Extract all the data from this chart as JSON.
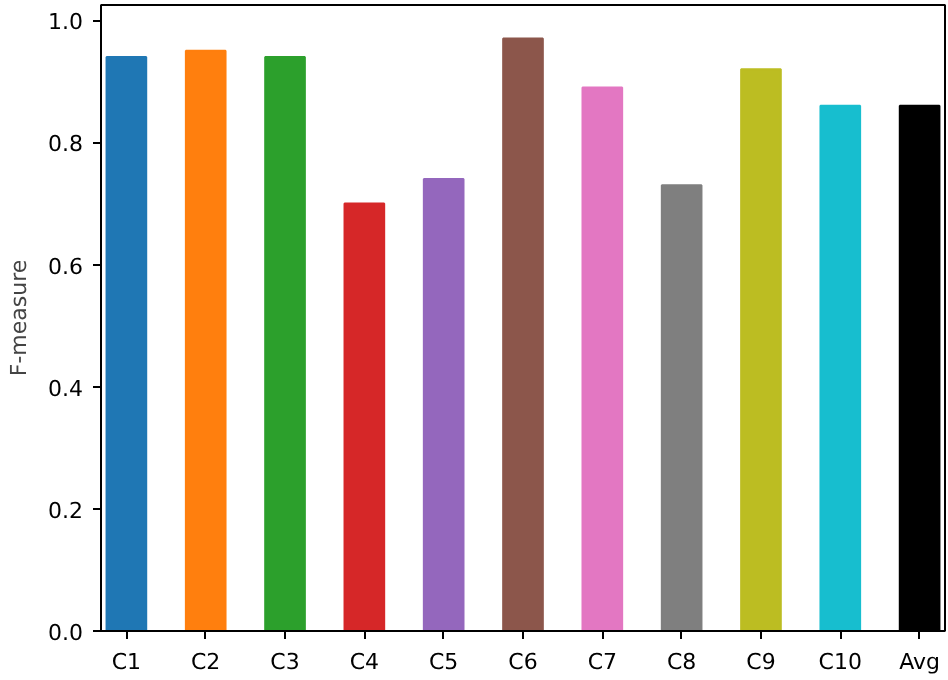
{
  "chart_data": {
    "type": "bar",
    "ylabel": "F-measure",
    "categories": [
      "C1",
      "C2",
      "C3",
      "C4",
      "C5",
      "C6",
      "C7",
      "C8",
      "C9",
      "C10",
      "Avg"
    ],
    "values": [
      0.94,
      0.95,
      0.94,
      0.7,
      0.74,
      0.97,
      0.89,
      0.73,
      0.92,
      0.86,
      0.86
    ],
    "colors": [
      "#1f77b4",
      "#ff7f0e",
      "#2ca02c",
      "#d62728",
      "#9467bd",
      "#8c564b",
      "#e377c2",
      "#7f7f7f",
      "#bcbd22",
      "#17becf",
      "#000000"
    ],
    "ylim": [
      0,
      1.025
    ],
    "yticks": [
      {
        "value": 0,
        "label": "0.0"
      },
      {
        "value": 0.2,
        "label": "0.2"
      },
      {
        "value": 0.4,
        "label": "0.4"
      },
      {
        "value": 0.6,
        "label": "0.6"
      },
      {
        "value": 0.8,
        "label": "0.8"
      },
      {
        "value": 1.0,
        "label": "1.0"
      }
    ],
    "grid": false
  }
}
